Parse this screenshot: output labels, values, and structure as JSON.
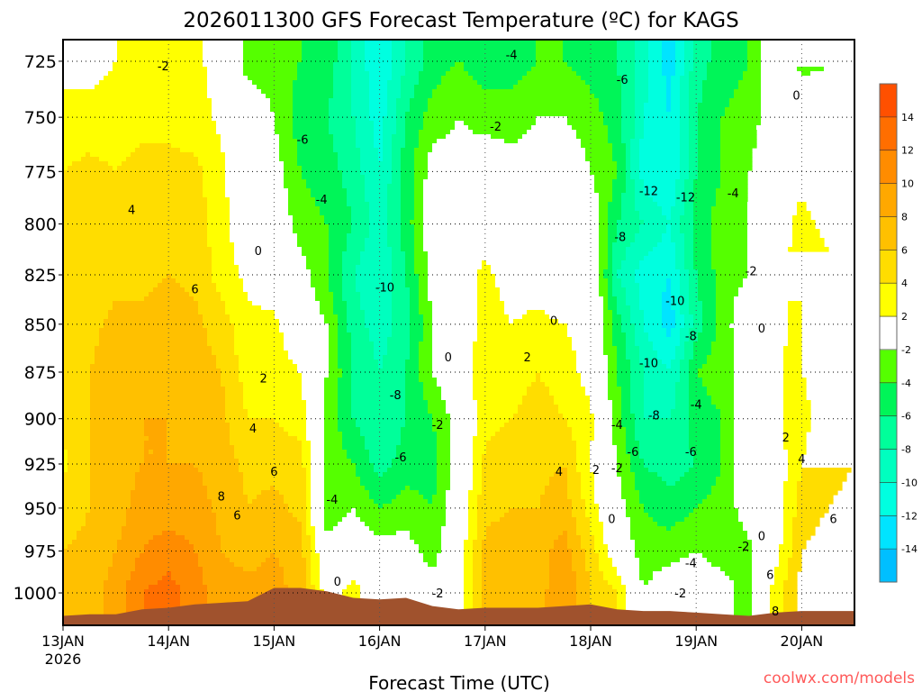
{
  "chart_data": {
    "type": "heatmap",
    "title": "2026011300 GFS Forecast Temperature (ºC) for KAGS",
    "xlabel": "Forecast Time (UTC)",
    "ylabel": "",
    "credit": "coolwx.com/models",
    "x_units": "days since 13JAN 00Z",
    "xlim": [
      0,
      7.5
    ],
    "ylim": [
      1019.8,
      715.6
    ],
    "y_scale": "log-pressure (reversed)",
    "x_ticks": [
      {
        "value": 0,
        "label": "13JAN",
        "sublabel": "2026"
      },
      {
        "value": 1,
        "label": "14JAN"
      },
      {
        "value": 2,
        "label": "15JAN"
      },
      {
        "value": 3,
        "label": "16JAN"
      },
      {
        "value": 4,
        "label": "17JAN"
      },
      {
        "value": 5,
        "label": "18JAN"
      },
      {
        "value": 6,
        "label": "19JAN"
      },
      {
        "value": 7,
        "label": "20JAN"
      }
    ],
    "y_ticks": [
      725,
      750,
      775,
      800,
      825,
      850,
      875,
      900,
      925,
      950,
      975,
      1000
    ],
    "grid": true,
    "times": [
      0,
      0.25,
      0.5,
      0.75,
      1,
      1.25,
      1.5,
      1.75,
      2,
      2.25,
      2.5,
      2.75,
      3,
      3.25,
      3.5,
      3.75,
      4,
      4.25,
      4.5,
      4.75,
      5,
      5.25,
      5.5,
      5.75,
      6,
      6.25,
      6.5,
      6.75,
      7,
      7.25,
      7.5
    ],
    "levels": [
      725,
      750,
      775,
      800,
      825,
      850,
      875,
      900,
      925,
      950,
      975,
      1000
    ],
    "temperature": [
      [
        1,
        3,
        4,
        4.5,
        5,
        5,
        6,
        4.5,
        3.5,
        5,
        6,
        6
      ],
      [
        1,
        3,
        4.5,
        5,
        5,
        5.5,
        6,
        6,
        6,
        6,
        6.5,
        7
      ],
      [
        2,
        3,
        4,
        5,
        5.5,
        6.5,
        7,
        7,
        7,
        7,
        8,
        9
      ],
      [
        3,
        3.5,
        4.5,
        5,
        5.5,
        6.5,
        7,
        8,
        8,
        9,
        10,
        12
      ],
      [
        2.5,
        3.5,
        4.5,
        5,
        6,
        7,
        7,
        8,
        8,
        9,
        11,
        13
      ],
      [
        2.5,
        3,
        4.5,
        5,
        5.5,
        6.5,
        7,
        7,
        8,
        9,
        10,
        11
      ],
      [
        1,
        1.5,
        2.5,
        3,
        3,
        5,
        6,
        6.5,
        7,
        7.5,
        8,
        9
      ],
      [
        -3,
        0,
        -1,
        0,
        1.5,
        2.5,
        3,
        4,
        5.5,
        6,
        7,
        9
      ],
      [
        -3,
        -2,
        -1,
        0,
        0.5,
        2.5,
        3,
        4,
        5.5,
        6.5,
        8,
        9
      ],
      [
        -4,
        -5,
        -4,
        -3,
        -1,
        0,
        2,
        3,
        5,
        5.5,
        7,
        7
      ],
      [
        -5,
        -6,
        -5,
        -4,
        -4,
        -2,
        -2,
        -2.5,
        -3,
        -3.5,
        -1,
        1
      ],
      [
        -8,
        -8,
        -7,
        -6,
        -8,
        -7,
        -6,
        -6,
        -4,
        -2,
        0,
        3
      ],
      [
        -12,
        -11,
        -10,
        -9,
        -10,
        -9,
        -8,
        -8,
        -7,
        -4,
        -1,
        0
      ],
      [
        -8,
        -6,
        -5,
        -5,
        -6,
        -7,
        -6,
        -6,
        -5,
        -3,
        -1,
        0.5
      ],
      [
        -5,
        -3,
        -1,
        -0.5,
        -1,
        -2,
        -2,
        -4,
        -5,
        -4,
        -3,
        -1
      ],
      [
        -4,
        -2,
        -1,
        0,
        1,
        0,
        0.5,
        -1,
        -1,
        0,
        0.5,
        1
      ],
      [
        -5,
        -3,
        0,
        1,
        2.5,
        3,
        3.5,
        3.5,
        4.5,
        5.5,
        6.5,
        7
      ],
      [
        -5,
        -3,
        -1,
        0,
        1,
        2,
        3,
        4,
        5,
        6,
        7,
        8
      ],
      [
        -4,
        -2,
        -1,
        0,
        1,
        2.5,
        4,
        5,
        5.5,
        6,
        7,
        7
      ],
      [
        -4,
        -2,
        0,
        0.5,
        0,
        2,
        3,
        4,
        6,
        7,
        9,
        10
      ],
      [
        -5,
        -3,
        -2,
        0,
        1,
        1,
        1,
        2.5,
        2,
        3,
        5,
        6
      ],
      [
        -6,
        -5,
        -4,
        -6,
        -8,
        -5,
        -4,
        -3,
        -2,
        -1,
        0,
        4
      ],
      [
        -9,
        -10,
        -11,
        -8,
        -11,
        -10,
        -8,
        -8,
        -6,
        -4,
        -3,
        -2
      ],
      [
        -13,
        -12,
        -12,
        -10,
        -12,
        -13,
        -10,
        -8,
        -7,
        -5,
        -3,
        0
      ],
      [
        -7,
        -6,
        -6,
        -5,
        -6,
        -7,
        -4,
        -5,
        -6,
        -4,
        -2,
        0
      ],
      [
        -5,
        -4,
        -4,
        -3,
        -3,
        -3,
        -3,
        -4,
        -4,
        -3,
        -3,
        -1
      ],
      [
        -4,
        -3,
        -2,
        -2,
        -2,
        0,
        -1,
        0,
        0,
        -1,
        -2.5,
        -3
      ],
      [
        1,
        -0.5,
        0,
        0,
        0.5,
        0.5,
        1,
        1.5,
        0.5,
        0.5,
        1,
        3
      ],
      [
        -3,
        1,
        1,
        3,
        4,
        4,
        4,
        3.5,
        4,
        5,
        6,
        7
      ],
      [
        -2,
        -1,
        0,
        1,
        3,
        5,
        5,
        5,
        5.5,
        6,
        7,
        7
      ],
      [
        -3,
        -3,
        0.5,
        1,
        3,
        5,
        5,
        5,
        6,
        6.5,
        7,
        7
      ]
    ],
    "surface_pressure": [
      1014,
      1013,
      1013,
      1010,
      1009,
      1007,
      1006,
      1005,
      997,
      997,
      999,
      1003,
      1004,
      1003,
      1008,
      1010,
      1009,
      1009,
      1009,
      1008,
      1007,
      1010,
      1011,
      1011,
      1012,
      1013,
      1014,
      1012,
      1011,
      1011,
      1011
    ],
    "colorbar": {
      "bounds": [
        -16,
        -14,
        -12,
        -10,
        -8,
        -6,
        -4,
        -2,
        2,
        4,
        6,
        8,
        10,
        12,
        14,
        16
      ],
      "labels": [
        "14",
        "12",
        "10",
        "8",
        "6",
        "4",
        "2",
        "-2",
        "-4",
        "-6",
        "-8",
        "-10",
        "-12",
        "-14"
      ],
      "colors": [
        "#00bfff",
        "#00e4ff",
        "#00ffe0",
        "#00ffbf",
        "#00ff9a",
        "#00f558",
        "#55ff00",
        "#ffffff",
        "#ffff00",
        "#ffdd00",
        "#ffc000",
        "#ffa800",
        "#ff8c00",
        "#ff6e00",
        "#ff5000"
      ]
    },
    "ground_color": "#a0522d",
    "contour_labels": [
      {
        "value": "-2",
        "day": 0.95,
        "p": 727
      },
      {
        "value": "4",
        "day": 0.65,
        "p": 793
      },
      {
        "value": "6",
        "day": 1.25,
        "p": 832
      },
      {
        "value": "-6",
        "day": 2.27,
        "p": 760
      },
      {
        "value": "-4",
        "day": 2.45,
        "p": 788
      },
      {
        "value": "-10",
        "day": 3.05,
        "p": 831
      },
      {
        "value": "-8",
        "day": 3.15,
        "p": 887
      },
      {
        "value": "-6",
        "day": 3.2,
        "p": 921
      },
      {
        "value": "-4",
        "day": 2.55,
        "p": 945
      },
      {
        "value": "0",
        "day": 2.6,
        "p": 993
      },
      {
        "value": "-2",
        "day": 3.55,
        "p": 903
      },
      {
        "value": "0",
        "day": 3.65,
        "p": 867
      },
      {
        "value": "2",
        "day": 4.4,
        "p": 867
      },
      {
        "value": "0",
        "day": 4.65,
        "p": 848
      },
      {
        "value": "-2",
        "day": 4.1,
        "p": 754
      },
      {
        "value": "-4",
        "day": 4.25,
        "p": 722
      },
      {
        "value": "-6",
        "day": 5.3,
        "p": 733
      },
      {
        "value": "-12",
        "day": 5.55,
        "p": 784
      },
      {
        "value": "-12",
        "day": 5.9,
        "p": 787
      },
      {
        "value": "-8",
        "day": 5.28,
        "p": 806
      },
      {
        "value": "-10",
        "day": 5.8,
        "p": 838
      },
      {
        "value": "-8",
        "day": 5.95,
        "p": 856
      },
      {
        "value": "-10",
        "day": 5.55,
        "p": 870
      },
      {
        "value": "-8",
        "day": 5.6,
        "p": 898
      },
      {
        "value": "-4",
        "day": 5.25,
        "p": 903
      },
      {
        "value": "-6",
        "day": 5.4,
        "p": 918
      },
      {
        "value": "-6",
        "day": 5.95,
        "p": 918
      },
      {
        "value": "-4",
        "day": 6,
        "p": 892
      },
      {
        "value": "-4",
        "day": 6.35,
        "p": 785
      },
      {
        "value": "-2",
        "day": 6.52,
        "p": 823
      },
      {
        "value": "0",
        "day": 6.62,
        "p": 852
      },
      {
        "value": "0",
        "day": 6.95,
        "p": 740
      },
      {
        "value": "2",
        "day": 1.9,
        "p": 878
      },
      {
        "value": "4",
        "day": 1.8,
        "p": 905
      },
      {
        "value": "6",
        "day": 2,
        "p": 929
      },
      {
        "value": "8",
        "day": 1.5,
        "p": 943
      },
      {
        "value": "6",
        "day": 1.65,
        "p": 954
      },
      {
        "value": "0",
        "day": 1.85,
        "p": 813
      },
      {
        "value": "2",
        "day": 5.05,
        "p": 928
      },
      {
        "value": "4",
        "day": 4.7,
        "p": 929
      },
      {
        "value": "2",
        "day": 6.85,
        "p": 910
      },
      {
        "value": "4",
        "day": 7,
        "p": 922
      },
      {
        "value": "6",
        "day": 7.3,
        "p": 956
      },
      {
        "value": "6",
        "day": 6.7,
        "p": 989
      },
      {
        "value": "8",
        "day": 6.75,
        "p": 1011
      },
      {
        "value": "-2",
        "day": 6.45,
        "p": 972
      },
      {
        "value": "0",
        "day": 6.62,
        "p": 966
      },
      {
        "value": "-4",
        "day": 5.95,
        "p": 982
      },
      {
        "value": "-2",
        "day": 5.85,
        "p": 1000
      },
      {
        "value": "-2",
        "day": 3.55,
        "p": 1000
      },
      {
        "value": "0",
        "day": 5.2,
        "p": 956
      },
      {
        "value": "-2",
        "day": 5.25,
        "p": 927
      }
    ]
  }
}
